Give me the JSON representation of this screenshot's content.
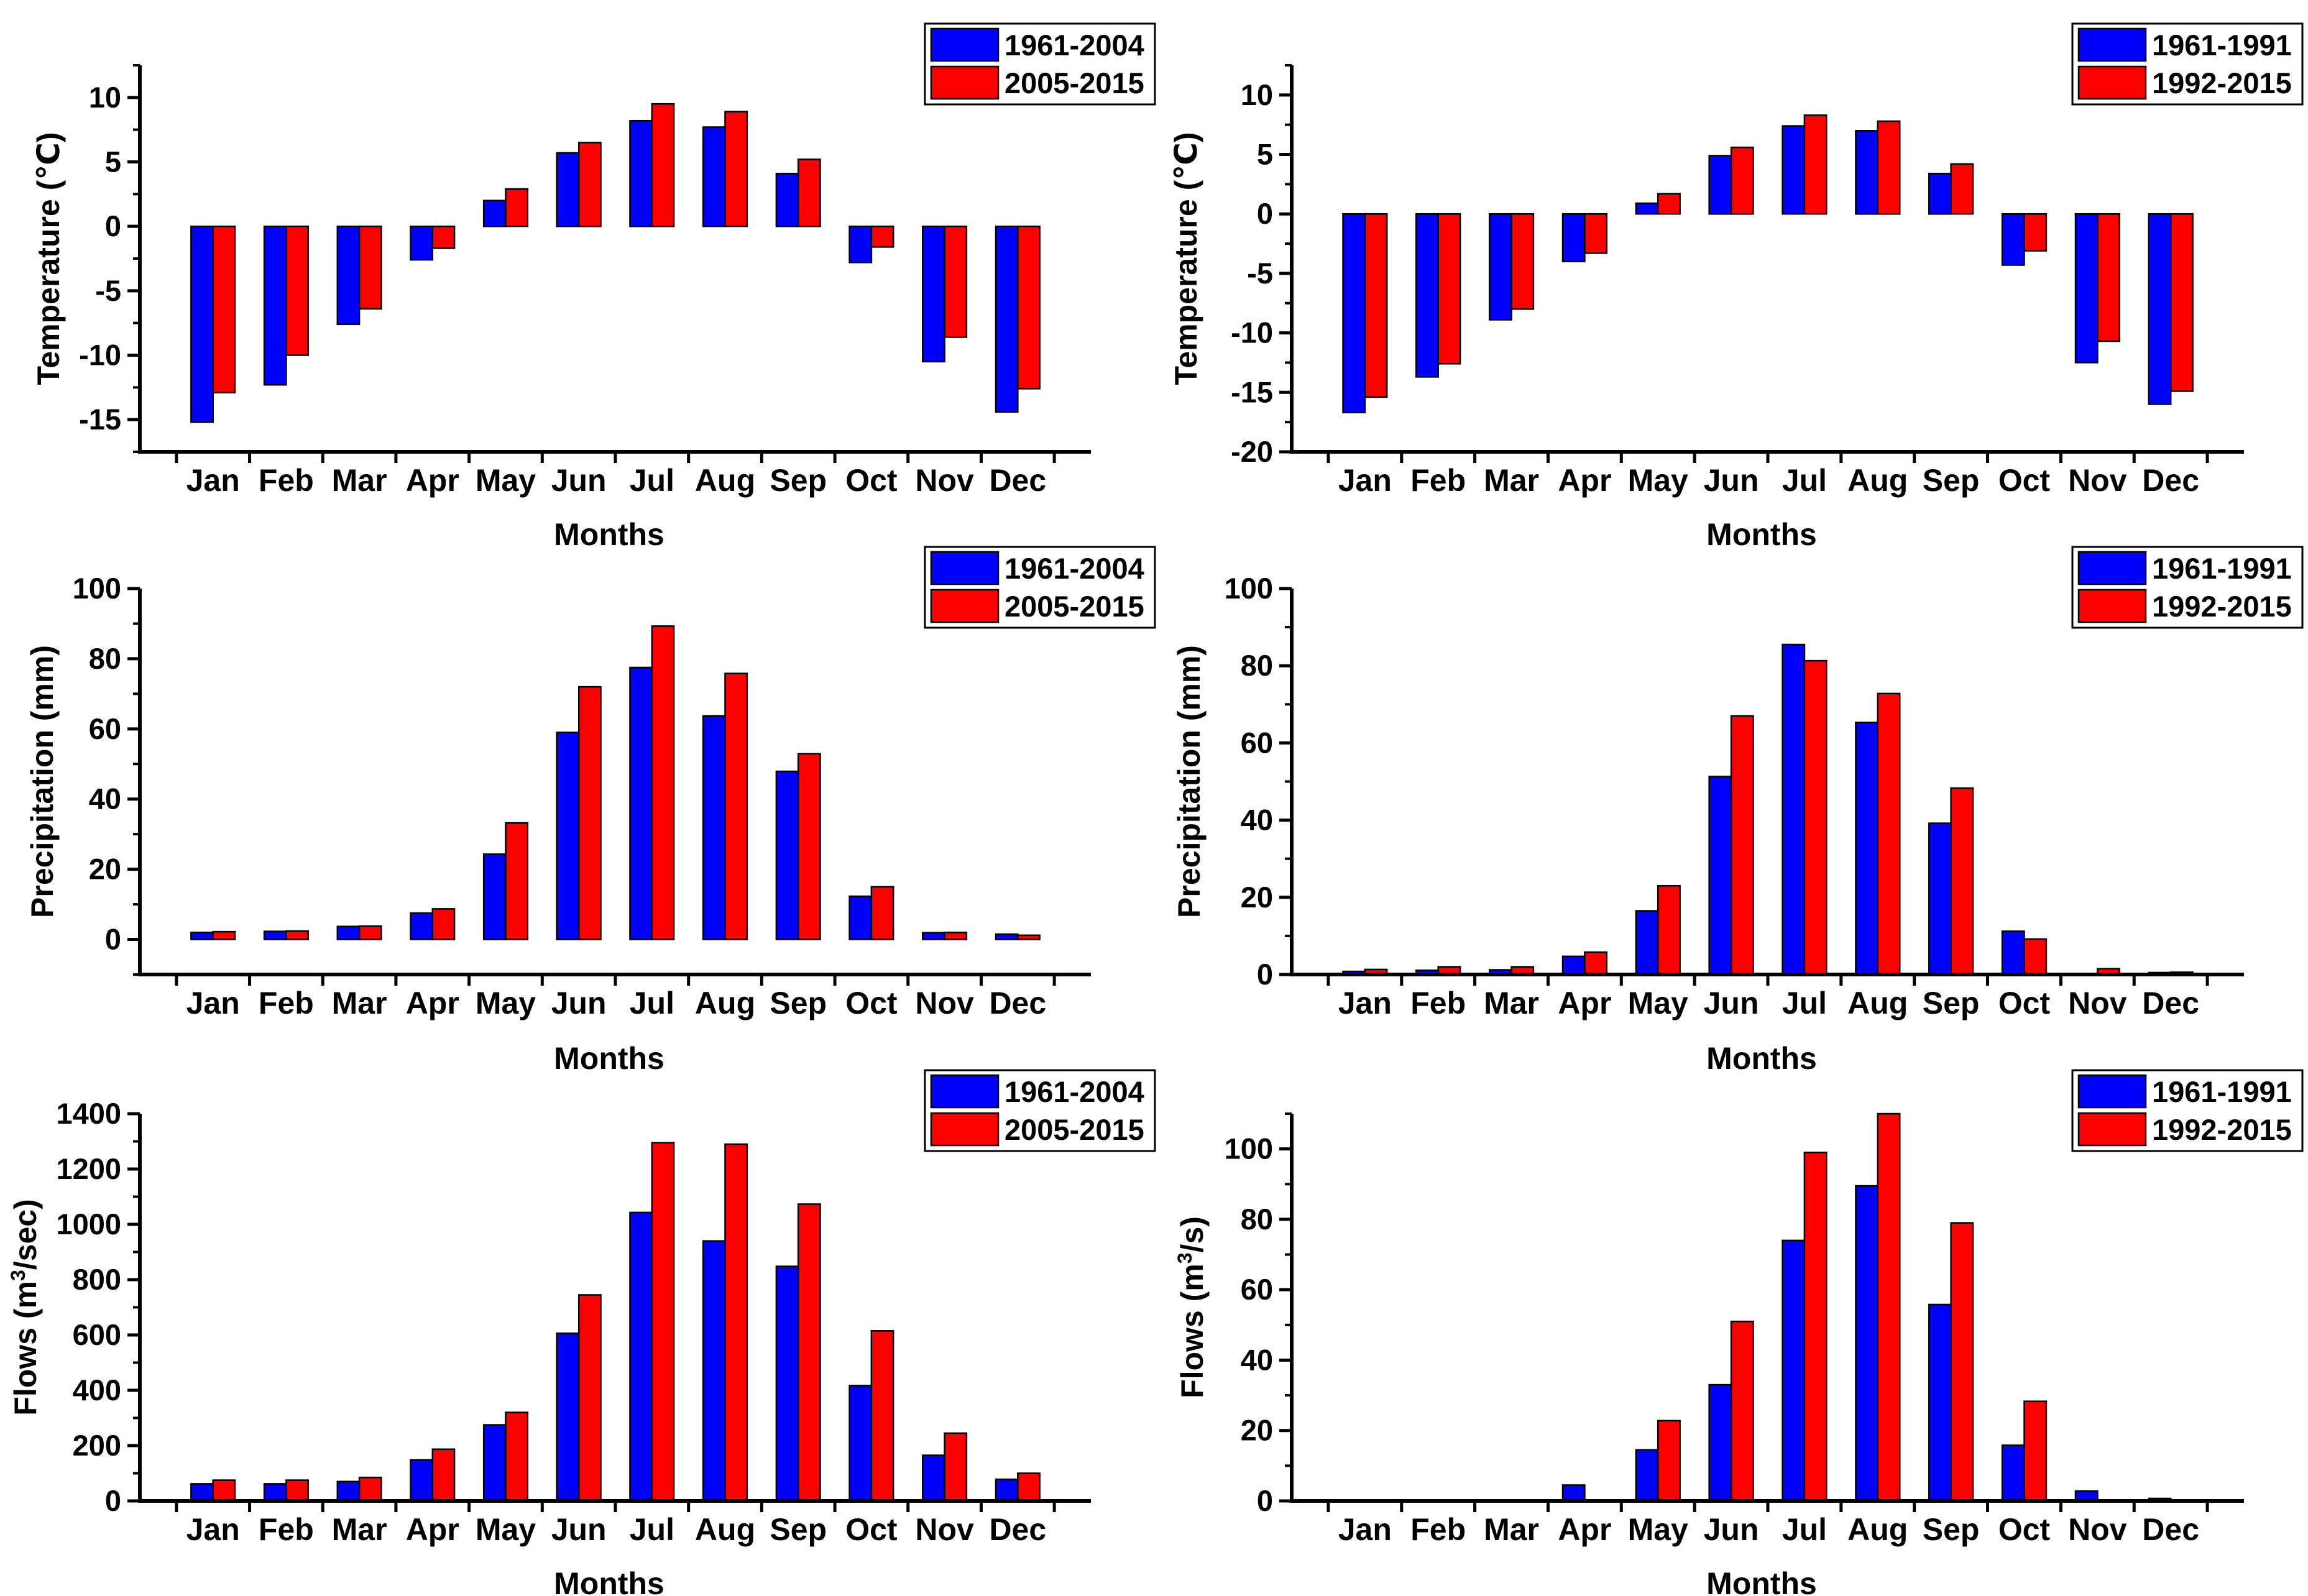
{
  "colors": {
    "series_a": "#0000ff",
    "series_b": "#ff0000",
    "axis": "#000000",
    "background": "#ffffff"
  },
  "chart_data": [
    {
      "type": "bar",
      "panel": "top-left",
      "title": "",
      "xlabel": "Months",
      "ylabel": "Temperature (℃)",
      "ylim": [
        -17.5,
        12.5
      ],
      "yticks": [
        10,
        5,
        0,
        -5,
        -10,
        -15
      ],
      "ytick_labels": [
        "10",
        "5",
        "0",
        "-5",
        "-10",
        "-15"
      ],
      "categories": [
        "Jan",
        "Feb",
        "Mar",
        "Apr",
        "May",
        "Jun",
        "Jul",
        "Aug",
        "Sep",
        "Oct",
        "Nov",
        "Dec"
      ],
      "series": [
        {
          "name": "1961-2004",
          "values": [
            -15.2,
            -12.3,
            -7.6,
            -2.6,
            2.0,
            5.7,
            8.2,
            7.7,
            4.1,
            -2.8,
            -10.5,
            -14.4
          ]
        },
        {
          "name": "2005-2015",
          "values": [
            -12.9,
            -10.0,
            -6.4,
            -1.7,
            2.9,
            6.5,
            9.5,
            8.9,
            5.2,
            -1.6,
            -8.6,
            -12.6
          ]
        }
      ],
      "legend": {
        "placement": "top-right"
      },
      "grid": false
    },
    {
      "type": "bar",
      "panel": "top-right",
      "title": "",
      "xlabel": "Months",
      "ylabel": "Temperature (℃)",
      "ylim": [
        -20,
        12.5
      ],
      "yticks": [
        10,
        5,
        0,
        -5,
        -10,
        -15,
        -20
      ],
      "ytick_labels": [
        "10",
        "5",
        "0",
        "-5",
        "-10",
        "-15",
        "-20"
      ],
      "categories": [
        "Jan",
        "Feb",
        "Mar",
        "Apr",
        "May",
        "Jun",
        "Jul",
        "Aug",
        "Sep",
        "Oct",
        "Nov",
        "Dec"
      ],
      "series": [
        {
          "name": "1961-1991",
          "values": [
            -16.7,
            -13.7,
            -8.9,
            -4.0,
            0.9,
            4.9,
            7.4,
            7.0,
            3.4,
            -4.3,
            -12.5,
            -16.0
          ]
        },
        {
          "name": "1992-2015",
          "values": [
            -15.4,
            -12.6,
            -8.0,
            -3.3,
            1.7,
            5.6,
            8.3,
            7.8,
            4.2,
            -3.1,
            -10.7,
            -14.9
          ]
        }
      ],
      "legend": {
        "placement": "top-right"
      },
      "grid": false
    },
    {
      "type": "bar",
      "panel": "middle-left",
      "title": "",
      "xlabel": "Months",
      "ylabel": "Precipitation (mm)",
      "ylim": [
        -10,
        100
      ],
      "yticks": [
        0,
        20,
        40,
        60,
        80,
        100
      ],
      "ytick_labels": [
        "0",
        "20",
        "40",
        "60",
        "80",
        "100"
      ],
      "categories": [
        "Jan",
        "Feb",
        "Mar",
        "Apr",
        "May",
        "Jun",
        "Jul",
        "Aug",
        "Sep",
        "Oct",
        "Nov",
        "Dec"
      ],
      "series": [
        {
          "name": "1961-2004",
          "values": [
            2.0,
            2.3,
            3.7,
            7.5,
            24.3,
            59.0,
            77.5,
            63.7,
            47.9,
            12.3,
            1.9,
            1.5
          ]
        },
        {
          "name": "2005-2015",
          "values": [
            2.2,
            2.4,
            3.8,
            8.7,
            33.2,
            72.0,
            89.3,
            75.8,
            52.9,
            15.0,
            2.0,
            1.2
          ]
        }
      ],
      "legend": {
        "placement": "top-right"
      },
      "grid": false
    },
    {
      "type": "bar",
      "panel": "middle-right",
      "title": "",
      "xlabel": "Months",
      "ylabel": "Precipitation (mm)",
      "ylim": [
        0,
        100
      ],
      "yticks": [
        0,
        20,
        40,
        60,
        80,
        100
      ],
      "ytick_labels": [
        "0",
        "20",
        "40",
        "60",
        "80",
        "100"
      ],
      "categories": [
        "Jan",
        "Feb",
        "Mar",
        "Apr",
        "May",
        "Jun",
        "Jul",
        "Aug",
        "Sep",
        "Oct",
        "Nov",
        "Dec"
      ],
      "series": [
        {
          "name": "1961-1991",
          "values": [
            0.8,
            1.1,
            1.2,
            4.7,
            16.5,
            51.3,
            85.5,
            65.3,
            39.2,
            11.2,
            0.0,
            0.5
          ]
        },
        {
          "name": "1992-2015",
          "values": [
            1.3,
            2.0,
            2.0,
            5.8,
            23.0,
            67.0,
            81.3,
            72.8,
            48.3,
            9.2,
            1.5,
            0.6
          ]
        }
      ],
      "legend": {
        "placement": "top-right"
      },
      "grid": false
    },
    {
      "type": "bar",
      "panel": "bottom-left",
      "title": "",
      "xlabel": "Months",
      "ylabel_pre": "Flows (m",
      "ylabel_sup": "3",
      "ylabel_post": "/sec)",
      "ylim": [
        0,
        1400
      ],
      "yticks": [
        0,
        200,
        400,
        600,
        800,
        1000,
        1200,
        1400
      ],
      "ytick_labels": [
        "0",
        "200",
        "400",
        "600",
        "800",
        "1000",
        "1200",
        "1400"
      ],
      "categories": [
        "Jan",
        "Feb",
        "Mar",
        "Apr",
        "May",
        "Jun",
        "Jul",
        "Aug",
        "Sep",
        "Oct",
        "Nov",
        "Dec"
      ],
      "series": [
        {
          "name": "1961-2004",
          "values": [
            62,
            62,
            70,
            148,
            275,
            606,
            1043,
            940,
            848,
            417,
            165,
            78
          ]
        },
        {
          "name": "2005-2015",
          "values": [
            75,
            75,
            85,
            187,
            320,
            745,
            1295,
            1290,
            1073,
            615,
            245,
            100
          ]
        }
      ],
      "legend": {
        "placement": "top-right"
      },
      "grid": false
    },
    {
      "type": "bar",
      "panel": "bottom-right",
      "title": "",
      "xlabel": "Months",
      "ylabel_pre": "Flows (m",
      "ylabel_sup": "3",
      "ylabel_post": "/s)",
      "ylim": [
        0,
        110
      ],
      "yticks": [
        0,
        20,
        40,
        60,
        80,
        100
      ],
      "ytick_labels": [
        "0",
        "20",
        "40",
        "60",
        "80",
        "100"
      ],
      "categories": [
        "Jan",
        "Feb",
        "Mar",
        "Apr",
        "May",
        "Jun",
        "Jul",
        "Aug",
        "Sep",
        "Oct",
        "Nov",
        "Dec"
      ],
      "series": [
        {
          "name": "1961-1991",
          "values": [
            0,
            0,
            0,
            4.5,
            14.5,
            33.0,
            74.0,
            89.5,
            55.8,
            15.8,
            2.8,
            0.7
          ]
        },
        {
          "name": "1992-2015",
          "values": [
            0,
            0,
            0,
            0,
            22.8,
            51.0,
            99.0,
            110.0,
            79.0,
            28.3,
            0,
            0
          ]
        }
      ],
      "legend": {
        "placement": "top-right"
      },
      "grid": false
    }
  ]
}
